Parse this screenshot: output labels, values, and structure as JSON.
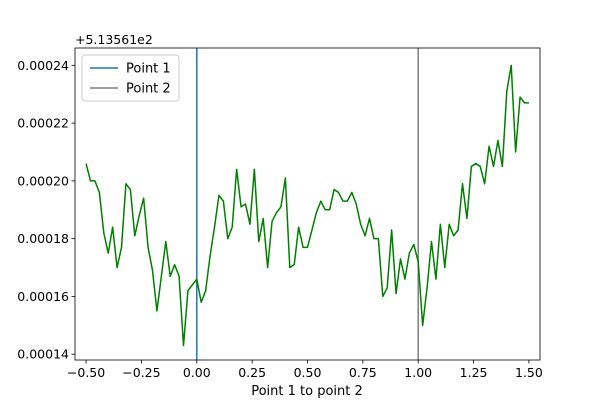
{
  "chart_data": {
    "type": "line",
    "title": "",
    "xlabel": "Point 1 to point 2",
    "ylabel": "",
    "y_offset_text": "+5.13561e2",
    "xlim": [
      -0.55,
      1.55
    ],
    "ylim": [
      0.000138,
      0.000246
    ],
    "x_ticks": [
      -0.5,
      -0.25,
      0.0,
      0.25,
      0.5,
      0.75,
      1.0,
      1.25,
      1.5
    ],
    "x_tick_labels": [
      "−0.50",
      "−0.25",
      "0.00",
      "0.25",
      "0.50",
      "0.75",
      "1.00",
      "1.25",
      "1.50"
    ],
    "y_ticks": [
      0.00014,
      0.00016,
      0.00018,
      0.0002,
      0.00022,
      0.00024
    ],
    "y_tick_labels": [
      "0.00014",
      "0.00016",
      "0.00018",
      "0.00020",
      "0.00022",
      "0.00024"
    ],
    "grid": false,
    "legend_position": "top-left",
    "series": [
      {
        "color": "#008000",
        "x": [
          -0.5,
          -0.48,
          -0.46,
          -0.44,
          -0.42,
          -0.4,
          -0.38,
          -0.36,
          -0.34,
          -0.32,
          -0.3,
          -0.28,
          -0.26,
          -0.24,
          -0.22,
          -0.2,
          -0.18,
          -0.16,
          -0.14,
          -0.12,
          -0.1,
          -0.08,
          -0.06,
          -0.04,
          -0.02,
          0.0,
          0.02,
          0.04,
          0.06,
          0.08,
          0.1,
          0.12,
          0.14,
          0.16,
          0.18,
          0.2,
          0.22,
          0.24,
          0.26,
          0.28,
          0.3,
          0.32,
          0.34,
          0.36,
          0.38,
          0.4,
          0.42,
          0.44,
          0.46,
          0.48,
          0.5,
          0.52,
          0.54,
          0.56,
          0.58,
          0.6,
          0.62,
          0.64,
          0.66,
          0.68,
          0.7,
          0.72,
          0.74,
          0.76,
          0.78,
          0.8,
          0.82,
          0.84,
          0.86,
          0.88,
          0.9,
          0.92,
          0.94,
          0.96,
          0.98,
          1.0,
          1.02,
          1.04,
          1.06,
          1.08,
          1.1,
          1.12,
          1.14,
          1.16,
          1.18,
          1.2,
          1.22,
          1.24,
          1.26,
          1.28,
          1.3,
          1.32,
          1.34,
          1.36,
          1.38,
          1.4,
          1.42,
          1.44,
          1.46,
          1.48,
          1.5
        ],
        "y": [
          0.000206,
          0.0002,
          0.0002,
          0.000196,
          0.000182,
          0.000175,
          0.000184,
          0.00017,
          0.000177,
          0.000199,
          0.000197,
          0.000181,
          0.000188,
          0.000194,
          0.000177,
          0.000169,
          0.000155,
          0.000167,
          0.000179,
          0.000167,
          0.000171,
          0.000167,
          0.000143,
          0.000162,
          0.000164,
          0.000166,
          0.000158,
          0.000162,
          0.000174,
          0.000184,
          0.000195,
          0.000193,
          0.00018,
          0.000184,
          0.000204,
          0.000191,
          0.000192,
          0.000185,
          0.000204,
          0.000179,
          0.000187,
          0.00017,
          0.000186,
          0.000189,
          0.000191,
          0.000201,
          0.00017,
          0.000171,
          0.000184,
          0.000177,
          0.000177,
          0.000183,
          0.000189,
          0.000193,
          0.00019,
          0.00019,
          0.000197,
          0.000196,
          0.000193,
          0.000193,
          0.000196,
          0.000192,
          0.000185,
          0.000181,
          0.000187,
          0.00018,
          0.00018,
          0.00016,
          0.000163,
          0.000183,
          0.000161,
          0.000173,
          0.000166,
          0.000175,
          0.000178,
          0.000172,
          0.00015,
          0.000163,
          0.000179,
          0.000166,
          0.000185,
          0.00017,
          0.000185,
          0.000181,
          0.000183,
          0.000199,
          0.000187,
          0.000205,
          0.000206,
          0.000205,
          0.000199,
          0.000212,
          0.000205,
          0.000214,
          0.000205,
          0.000231,
          0.00024,
          0.00021,
          0.000229,
          0.000227,
          0.000227
        ]
      }
    ],
    "vlines": [
      {
        "name": "Point 1",
        "x": 0.0,
        "color": "#1f77b4"
      },
      {
        "name": "Point 2",
        "x": 1.0,
        "color": "#7f7f7f"
      }
    ]
  }
}
